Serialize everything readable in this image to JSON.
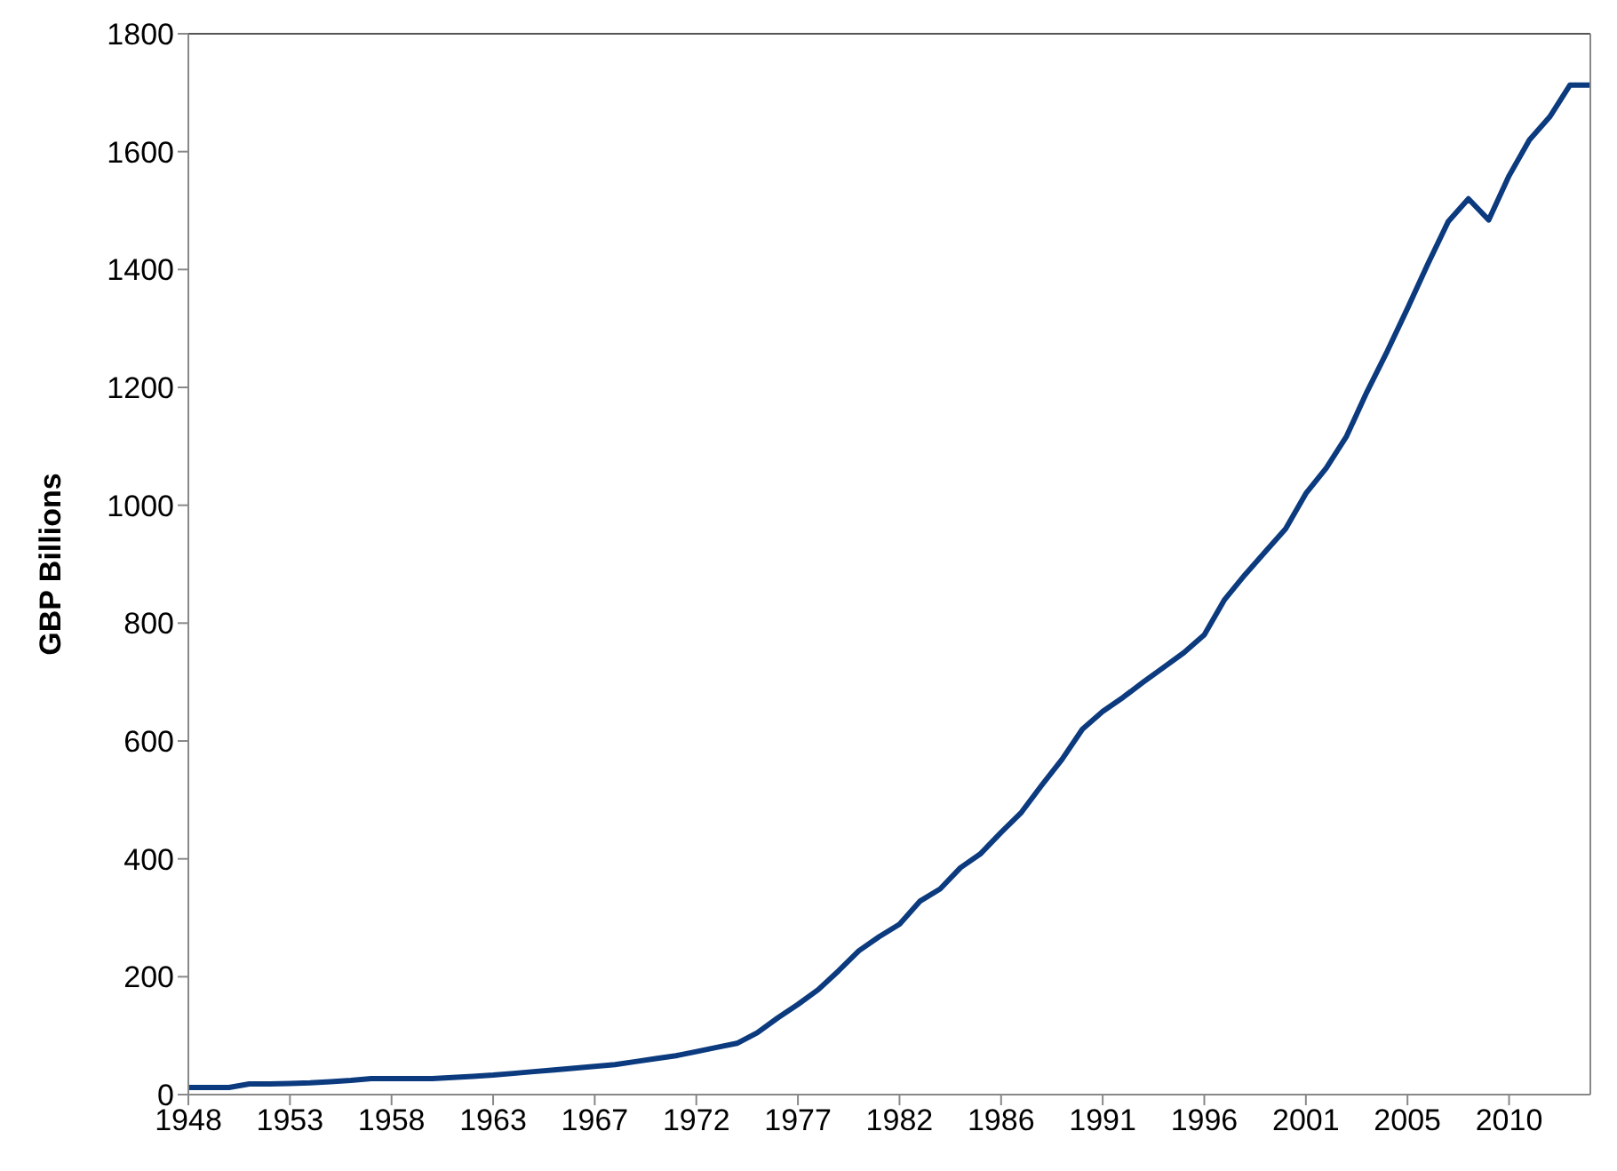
{
  "chart_data": {
    "type": "line",
    "ylabel": "GBP Billions",
    "categories": [
      "1948",
      null,
      null,
      null,
      null,
      "1953",
      null,
      null,
      null,
      null,
      "1958",
      null,
      null,
      null,
      null,
      "1963",
      null,
      null,
      null,
      null,
      "1967",
      null,
      null,
      null,
      null,
      "1972",
      null,
      null,
      null,
      null,
      "1977",
      null,
      null,
      null,
      null,
      "1982",
      null,
      null,
      null,
      null,
      "1986",
      null,
      null,
      null,
      null,
      "1991",
      null,
      null,
      null,
      null,
      "1996",
      null,
      null,
      null,
      null,
      "2001",
      null,
      null,
      null,
      null,
      "2005",
      null,
      null,
      null,
      null,
      "2010",
      null,
      null,
      null,
      null
    ],
    "series": [
      {
        "color": "#0b3a7e",
        "values": [
          12,
          12,
          12,
          18,
          18,
          19,
          20,
          22,
          24,
          27,
          27,
          27,
          27,
          29,
          31,
          33,
          36,
          39,
          42,
          45,
          48,
          51,
          56,
          61,
          66,
          73,
          80,
          87,
          105,
          130,
          153,
          178,
          210,
          244,
          268,
          289,
          328,
          349,
          385,
          409,
          445,
          479,
          525,
          569,
          620,
          650,
          674,
          700,
          725,
          750,
          780,
          840,
          882,
          921,
          960,
          1020,
          1063,
          1117,
          1192,
          1261,
          1334,
          1409,
          1481,
          1520,
          1484,
          1559,
          1620,
          1659,
          1713,
          1713
        ]
      }
    ],
    "ylim": [
      0,
      1800
    ],
    "yticks": [
      0,
      200,
      400,
      600,
      800,
      1000,
      1200,
      1400,
      1600,
      1800
    ],
    "grid": false,
    "legend": false,
    "marker": "none",
    "line_style": "solid"
  }
}
